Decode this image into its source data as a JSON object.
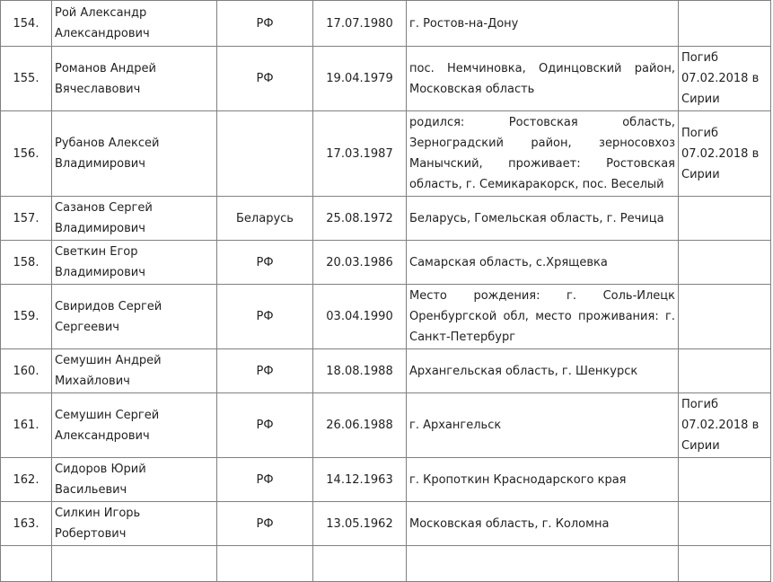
{
  "colors": {
    "border": "#808080",
    "text": "#222222",
    "background": "#ffffff"
  },
  "table": {
    "rows": [
      {
        "num": "154.",
        "name": "Рой Александр Александрович",
        "citizenship": "РФ",
        "birthdate": "17.07.1980",
        "place": "г. Ростов-на-Дону",
        "note": ""
      },
      {
        "num": "155.",
        "name": "Романов Андрей Вячеславович",
        "citizenship": "РФ",
        "birthdate": "19.04.1979",
        "place": "пос. Немчиновка, Одинцовский район, Московская область",
        "note": "Погиб 07.02.2018 в Сирии"
      },
      {
        "num": "156.",
        "name": "Рубанов Алексей Владимирович",
        "citizenship": "",
        "birthdate": "17.03.1987",
        "place": "родился: Ростовская область, Зерноградский район, зерносовхоз Манычский, проживает: Ростовская область, г. Семикаракорск, пос. Веселый",
        "note": "Погиб 07.02.2018 в Сирии"
      },
      {
        "num": "157.",
        "name": "Сазанов Сергей Владимирович",
        "citizenship": "Беларусь",
        "birthdate": "25.08.1972",
        "place": "Беларусь, Гомельская область, г. Речица",
        "note": ""
      },
      {
        "num": "158.",
        "name": "Светкин Егор Владимирович",
        "citizenship": "РФ",
        "birthdate": "20.03.1986",
        "place": "Самарская область, с.Хрящевка",
        "note": ""
      },
      {
        "num": "159.",
        "name": "Свиридов Сергей Сергеевич",
        "citizenship": "РФ",
        "birthdate": "03.04.1990",
        "place": "Место рождения: г. Соль-Илецк Оренбургской обл, место проживания: г. Санкт-Петербург",
        "note": ""
      },
      {
        "num": "160.",
        "name": "Семушин Андрей Михайлович",
        "citizenship": "РФ",
        "birthdate": "18.08.1988",
        "place": "Архангельская область, г. Шенкурск",
        "note": ""
      },
      {
        "num": "161.",
        "name": "Семушин Сергей Александрович",
        "citizenship": "РФ",
        "birthdate": "26.06.1988",
        "place": "г. Архангельск",
        "note": "Погиб 07.02.2018 в Сирии"
      },
      {
        "num": "162.",
        "name": "Сидоров Юрий Васильевич",
        "citizenship": "РФ",
        "birthdate": "14.12.1963",
        "place": "г. Кропоткин Краснодарского края",
        "note": ""
      },
      {
        "num": "163.",
        "name": "Силкин Игорь Робертович",
        "citizenship": "РФ",
        "birthdate": "13.05.1962",
        "place": "Московская область, г. Коломна",
        "note": ""
      }
    ]
  }
}
